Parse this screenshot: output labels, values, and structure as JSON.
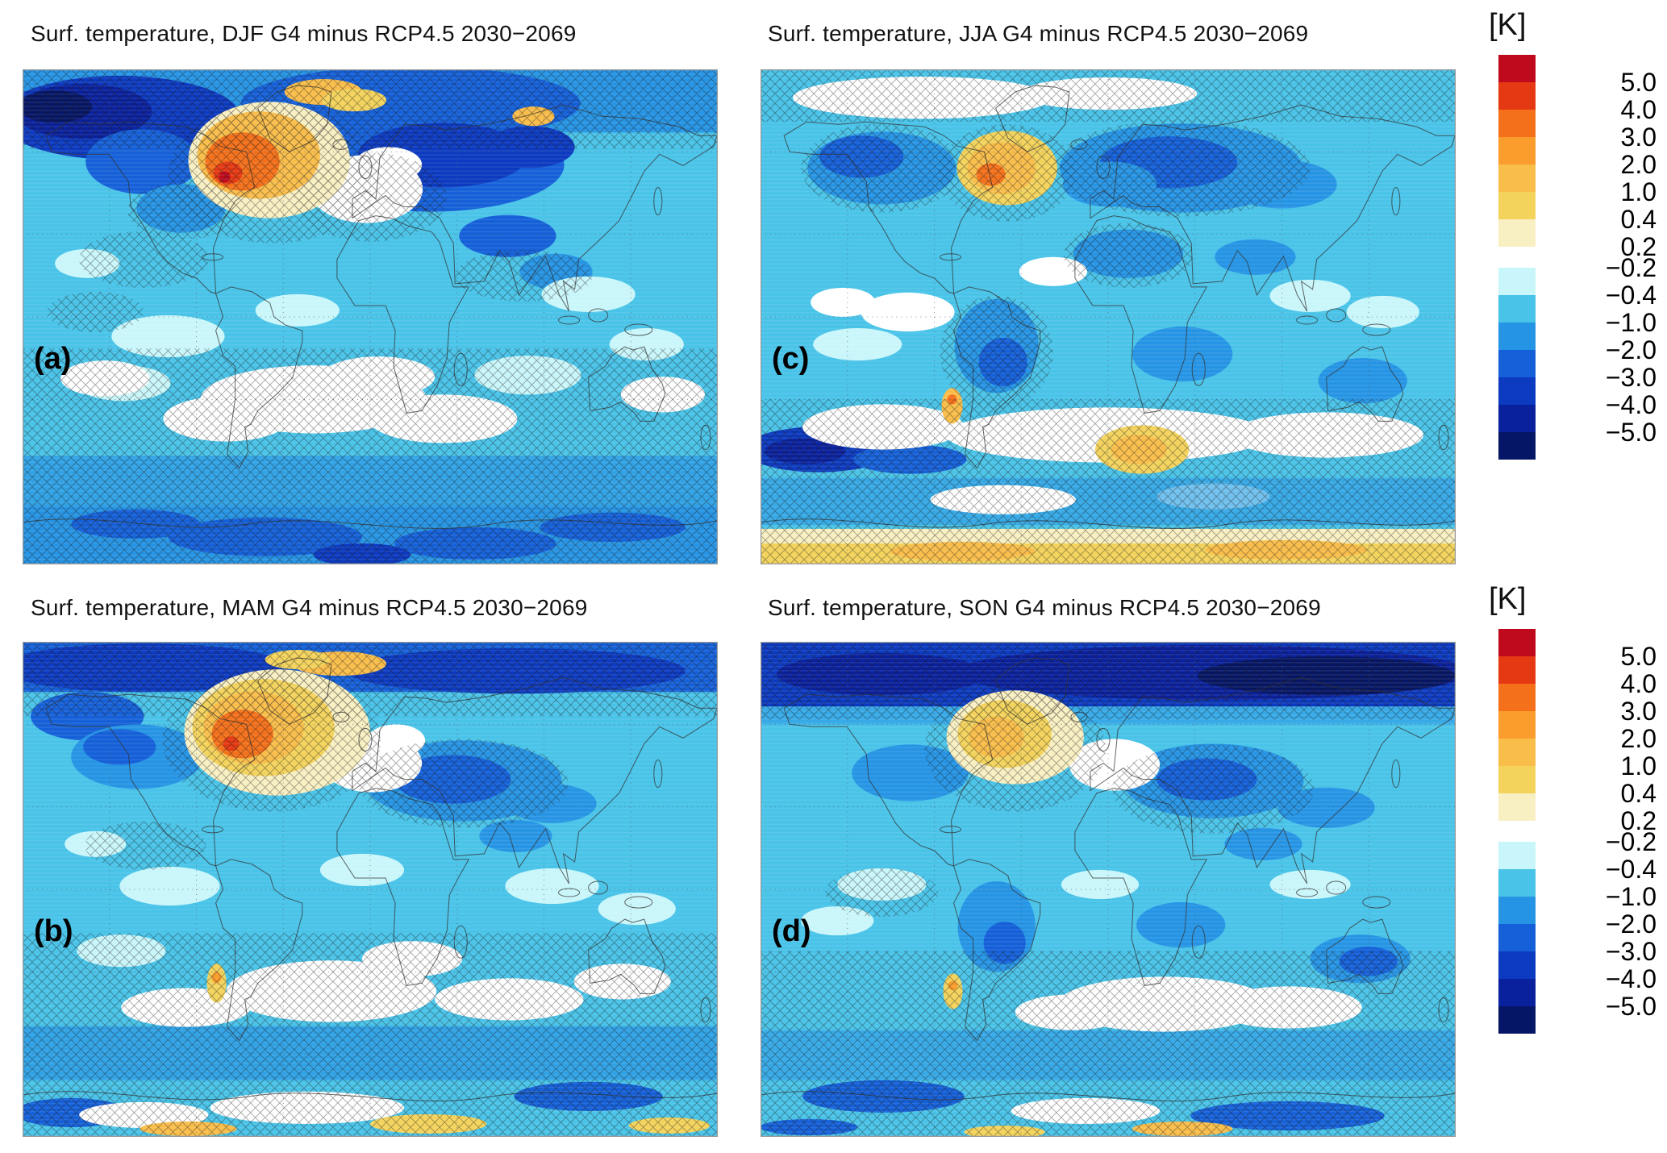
{
  "figure": {
    "panels": [
      {
        "label": "(a)",
        "season": "DJF",
        "title": "Surf. temperature, DJF G4 minus RCP4.5 2030−2069"
      },
      {
        "label": "(c)",
        "season": "JJA",
        "title": "Surf. temperature, JJA G4 minus RCP4.5 2030−2069"
      },
      {
        "label": "(b)",
        "season": "MAM",
        "title": "Surf. temperature, MAM G4 minus RCP4.5 2030−2069"
      },
      {
        "label": "(d)",
        "season": "SON",
        "title": "Surf. temperature, SON G4 minus RCP4.5 2030−2069"
      }
    ],
    "colorbar": {
      "unit": "[K]",
      "warm_ticks": [
        "5.0",
        "4.0",
        "3.0",
        "2.0",
        "1.0",
        "0.4",
        "0.2"
      ],
      "cool_ticks": [
        "−0.2",
        "−0.4",
        "−1.0",
        "−2.0",
        "−3.0",
        "−4.0",
        "−5.0"
      ]
    },
    "palette": {
      "warm": [
        "#bf0a1e",
        "#e53913",
        "#f4701a",
        "#fa9d2c",
        "#f9bd4a",
        "#f3d35c",
        "#f8efc2"
      ],
      "cool": [
        "#c9f6fa",
        "#49c3e8",
        "#2694e4",
        "#1560d8",
        "#0c3ac0",
        "#0a219e",
        "#061666"
      ],
      "zero": "#ffffff"
    }
  },
  "chart_data": {
    "type": "heatmap",
    "subtype": "filled-contour global maps (equirectangular) with cross-hatch overlay",
    "variable": "Surface temperature difference",
    "units": "K",
    "comparison": "G4 minus RCP4.5",
    "period": "2030−2069",
    "contour_levels": [
      -5.0,
      -4.0,
      -3.0,
      -2.0,
      -1.0,
      -0.4,
      -0.2,
      0.2,
      0.4,
      1.0,
      2.0,
      3.0,
      4.0,
      5.0
    ],
    "legend": {
      "position": "right",
      "unit": "[K]",
      "tick_labels": [
        "5.0",
        "4.0",
        "3.0",
        "2.0",
        "1.0",
        "0.4",
        "0.2",
        "−0.2",
        "−0.4",
        "−1.0",
        "−2.0",
        "−3.0",
        "−4.0",
        "−5.0"
      ]
    },
    "panels": [
      {
        "label": "(a)",
        "season": "DJF",
        "summary": "Widespread cooling of 0.2 to 1 K over most oceans; strong cooling of 2 to 5 K over Arctic Canada, Alaska and Siberia; warming of 1 to 4 K over southern Greenland and the northwest North Atlantic and near the Barents Sea; near-zero (white) band with cross-hatching over Europe and the southern mid-latitude oceans; 1 to 2 K cooling around Antarctica."
      },
      {
        "label": "(c)",
        "season": "JJA",
        "summary": "General cooling of 0.2 to 1 K; 1 to 3 K cooling over northern North America, Siberia, northern Africa, India, South America and southern Africa; 0.4 to 2 K warming south of Greenland; 0.4 to 1 K warming band along coastal Antarctica; 3 to 5 K cooling patch in the far southeast Pacific; hatched near-zero bands in the Arctic and Southern Ocean."
      },
      {
        "label": "(b)",
        "season": "MAM",
        "summary": "Strong 2 to 4 K cooling band across the Arctic; broad 1 to 3 K warming over Greenland and the northwest North Atlantic; 1 to 2 K cooling over central Asia; widespread 0.2 to 1 K ocean cooling; hatched near-zero regions over Europe, the South Atlantic and Southern Ocean; small warm spots along Patagonia and coastal Antarctica."
      },
      {
        "label": "(d)",
        "season": "SON",
        "summary": "Very strong 3 to 5 K cooling across the entire Arctic band; 0.4 to 1 K warming near southern Greenland and the subpolar North Atlantic; 1 to 2 K cooling over Asia, Australia and parts of South America; widespread 0.2 to 1 K cooling elsewhere; hatched near-zero areas in the southern mid-latitudes."
      }
    ],
    "overlay_note": "Cross-hatched (X pattern) areas are drawn over large portions of each map."
  }
}
